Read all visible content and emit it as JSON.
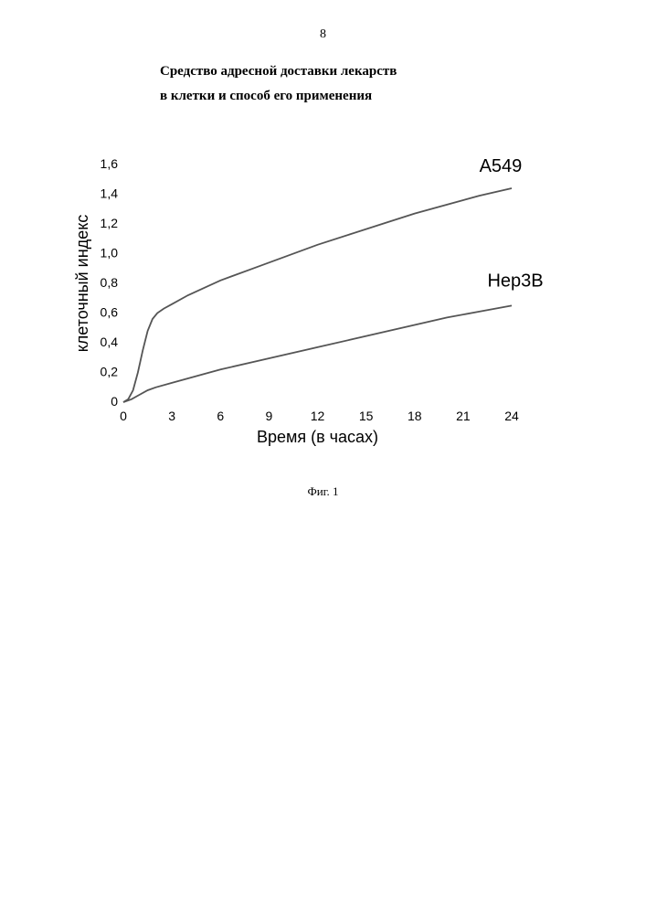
{
  "page_number": "8",
  "title_line1": "Средство адресной доставки лекарств",
  "title_line2": "в клетки и способ его применения",
  "figure_caption": "Фиг. 1",
  "chart": {
    "type": "line",
    "x_label": "Время (в часах)",
    "y_label": "клеточный индекс",
    "xlim": [
      0,
      24
    ],
    "ylim": [
      0,
      1.6
    ],
    "x_ticks": [
      0,
      3,
      6,
      9,
      12,
      15,
      18,
      21,
      24
    ],
    "y_ticks": [
      "0",
      "0,2",
      "0,4",
      "0,6",
      "0,8",
      "1,0",
      "1,2",
      "1,4",
      "1,6"
    ],
    "y_tick_values": [
      0,
      0.2,
      0.4,
      0.6,
      0.8,
      1.0,
      1.2,
      1.4,
      1.6
    ],
    "background_color": "#ffffff",
    "tick_fontsize": 14,
    "label_fontsize": 18,
    "series_label_fontsize": 20,
    "line_color": "#555555",
    "line_width": 1.8,
    "series": [
      {
        "name": "A549",
        "label": "A549",
        "label_x": 22,
        "label_y": 1.55,
        "points": [
          [
            0,
            0.0
          ],
          [
            0.3,
            0.02
          ],
          [
            0.6,
            0.08
          ],
          [
            0.9,
            0.2
          ],
          [
            1.2,
            0.35
          ],
          [
            1.5,
            0.48
          ],
          [
            1.8,
            0.56
          ],
          [
            2.1,
            0.6
          ],
          [
            2.5,
            0.63
          ],
          [
            3,
            0.66
          ],
          [
            4,
            0.72
          ],
          [
            5,
            0.77
          ],
          [
            6,
            0.82
          ],
          [
            8,
            0.9
          ],
          [
            10,
            0.98
          ],
          [
            12,
            1.06
          ],
          [
            14,
            1.13
          ],
          [
            16,
            1.2
          ],
          [
            18,
            1.27
          ],
          [
            20,
            1.33
          ],
          [
            22,
            1.39
          ],
          [
            24,
            1.44
          ]
        ]
      },
      {
        "name": "Hep3B",
        "label": "Hep3B",
        "label_x": 22.5,
        "label_y": 0.78,
        "points": [
          [
            0,
            0.0
          ],
          [
            0.5,
            0.02
          ],
          [
            1,
            0.05
          ],
          [
            1.5,
            0.08
          ],
          [
            2,
            0.1
          ],
          [
            3,
            0.13
          ],
          [
            4,
            0.16
          ],
          [
            5,
            0.19
          ],
          [
            6,
            0.22
          ],
          [
            8,
            0.27
          ],
          [
            10,
            0.32
          ],
          [
            12,
            0.37
          ],
          [
            14,
            0.42
          ],
          [
            16,
            0.47
          ],
          [
            18,
            0.52
          ],
          [
            20,
            0.57
          ],
          [
            22,
            0.61
          ],
          [
            24,
            0.65
          ]
        ]
      }
    ]
  }
}
